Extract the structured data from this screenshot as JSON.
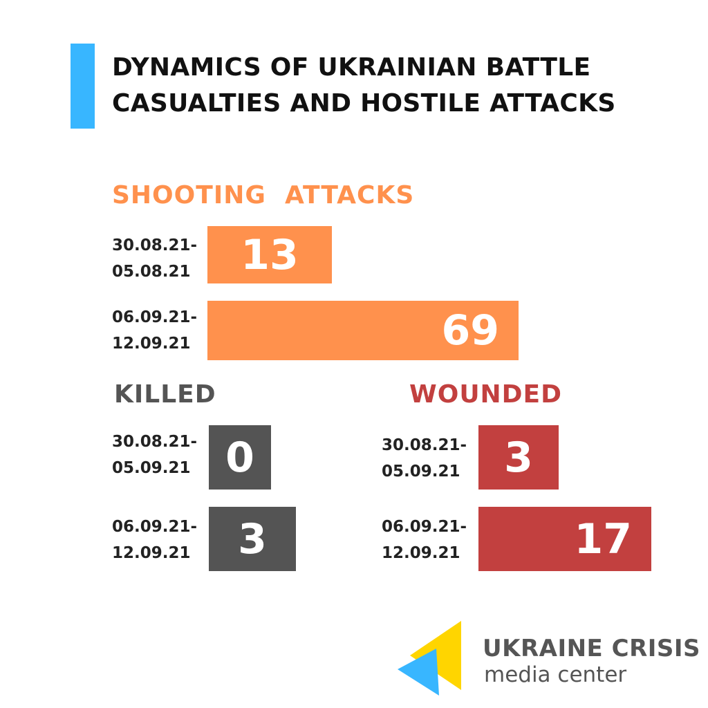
{
  "title_lines": [
    "DYNAMICS OF UKRAINIAN BATTLE",
    "CASUALTIES AND HOSTILE ATTACKS"
  ],
  "colors": {
    "accent": "#38B6FF",
    "attacks": "#FF914D",
    "killed": "#545454",
    "wounded": "#C2403F",
    "logo_yellow": "#FFD500",
    "logo_blue": "#38B6FF"
  },
  "logo": {
    "line1": "UKRAINE CRISIS",
    "line2": "media center",
    "icon": "ukraine-crisis-media-center-logo-icon"
  },
  "chart_data": [
    {
      "type": "bar",
      "title": "SHOOTING  ATTACKS",
      "categories": [
        [
          "30.08.21-",
          "05.08.21"
        ],
        [
          "06.09.21-",
          "12.09.21"
        ]
      ],
      "values": [
        13,
        69
      ],
      "color": "#FF914D"
    },
    {
      "type": "bar",
      "title": "KILLED",
      "categories": [
        [
          "30.08.21-",
          "05.09.21"
        ],
        [
          "06.09.21-",
          "12.09.21"
        ]
      ],
      "values": [
        0,
        3
      ],
      "color": "#545454"
    },
    {
      "type": "bar",
      "title": "WOUNDED",
      "categories": [
        [
          "30.08.21-",
          "05.09.21"
        ],
        [
          "06.09.21-",
          "12.09.21"
        ]
      ],
      "values": [
        3,
        17
      ],
      "color": "#C2403F"
    }
  ]
}
